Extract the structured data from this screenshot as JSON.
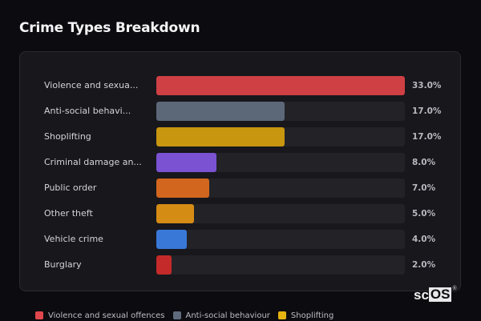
{
  "title": "Crime Types Breakdown",
  "chart_data": {
    "type": "bar",
    "orientation": "horizontal",
    "title": "Crime Types Breakdown",
    "categories": [
      "Violence and sexual offences",
      "Anti-social behaviour",
      "Shoplifting",
      "Criminal damage and arson",
      "Public order",
      "Other theft",
      "Vehicle crime",
      "Burglary"
    ],
    "display_labels": [
      "Violence and sexua...",
      "Anti-social behavi...",
      "Shoplifting",
      "Criminal damage an...",
      "Public order",
      "Other theft",
      "Vehicle crime",
      "Burglary"
    ],
    "values": [
      33.0,
      17.0,
      17.0,
      8.0,
      7.0,
      5.0,
      4.0,
      2.0
    ],
    "value_labels": [
      "33.0%",
      "17.0%",
      "17.0%",
      "8.0%",
      "7.0%",
      "5.0%",
      "4.0%",
      "2.0%"
    ],
    "colors": [
      "#cf4044",
      "#5c6778",
      "#c8960f",
      "#7a52d2",
      "#d2661e",
      "#d58c14",
      "#3a78d8",
      "#c42a2a"
    ],
    "xlabel": "",
    "ylabel": "",
    "xlim": [
      0,
      33
    ],
    "grid": false,
    "legend_position": "bottom"
  },
  "legend": [
    {
      "label": "Violence and sexual offences",
      "color": "#e0474c"
    },
    {
      "label": "Anti-social behaviour",
      "color": "#5f6b7c"
    },
    {
      "label": "Shoplifting",
      "color": "#e6b40f"
    }
  ],
  "watermark": {
    "prefix": "sc",
    "boxed": "OS",
    "mark": "®"
  }
}
